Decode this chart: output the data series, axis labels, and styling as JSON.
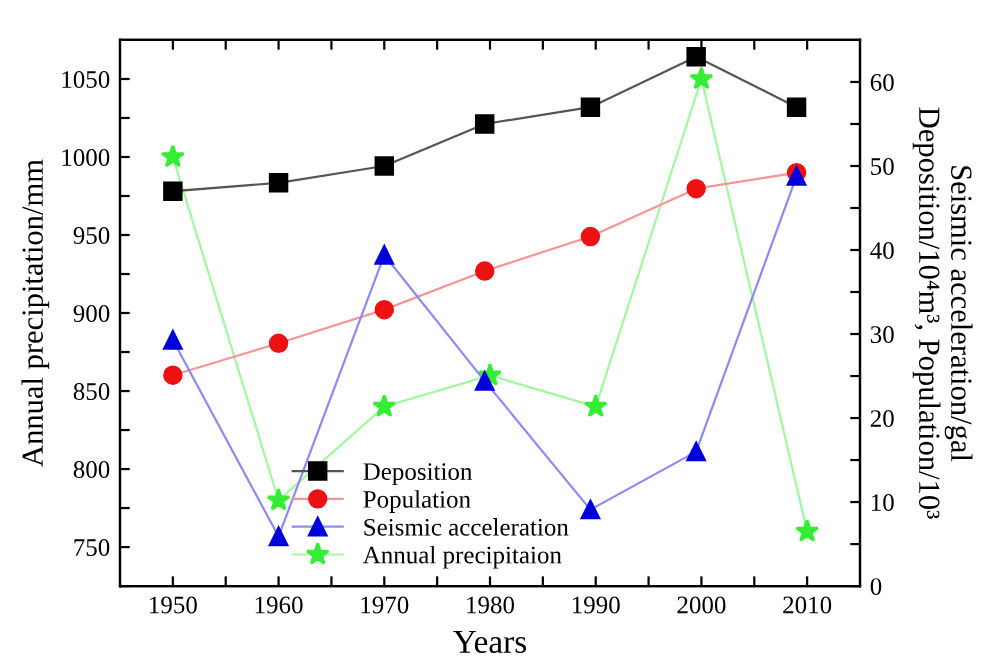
{
  "chart_data": {
    "type": "line",
    "xlabel": "Years",
    "ylabel": "Annual precipitation/mm",
    "y2label": "Seismic acceleration/gal\nDeposition/10⁴m³, Population/10³",
    "xlim": [
      1945,
      2015
    ],
    "xticks": [
      1950,
      {
        "value": 1955,
        "label": null
      },
      1960,
      {
        "value": 1965,
        "label": null
      },
      1970,
      {
        "value": 1975,
        "label": null
      },
      1980,
      {
        "value": 1985,
        "label": null
      },
      1990,
      {
        "value": 1995,
        "label": null
      },
      2000,
      {
        "value": 2005,
        "label": null
      },
      2010
    ],
    "ylim": [
      725,
      1075
    ],
    "yticks": [
      {
        "value": 725,
        "label": null
      },
      750,
      {
        "value": 775,
        "label": null
      },
      800,
      {
        "value": 825,
        "label": null
      },
      850,
      {
        "value": 875,
        "label": null
      },
      900,
      {
        "value": 925,
        "label": null
      },
      950,
      {
        "value": 975,
        "label": null
      },
      1000,
      {
        "value": 1025,
        "label": null
      },
      1050
    ],
    "y2lim": [
      0,
      65
    ],
    "y2ticks": [
      0,
      {
        "value": 5,
        "label": null
      },
      10,
      {
        "value": 15,
        "label": null
      },
      20,
      {
        "value": 25,
        "label": null
      },
      30,
      {
        "value": 35,
        "label": null
      },
      40,
      {
        "value": 45,
        "label": null
      },
      50,
      {
        "value": 55,
        "label": null
      },
      60
    ],
    "grid": false,
    "legend": "bottom",
    "series": [
      {
        "name": "Deposition",
        "color": "#000000",
        "marker": "square",
        "axis": "y2",
        "x": [
          1950,
          1960,
          1970,
          1979.5,
          1989.5,
          1999.5,
          2009
        ],
        "values": [
          47,
          48,
          50,
          55,
          57,
          63,
          57
        ]
      },
      {
        "name": "Population",
        "color": "#ee1111",
        "marker": "circle",
        "axis": "y2",
        "x": [
          1950,
          1960,
          1970,
          1979.5,
          1989.5,
          1999.5,
          2009
        ],
        "values": [
          25.1,
          28.9,
          32.9,
          37.5,
          41.6,
          47.3,
          49.2
        ]
      },
      {
        "name": "Seismic acceleration",
        "color": "#0000dd",
        "marker": "triangle",
        "axis": "y2",
        "x": [
          1950,
          1960,
          1970,
          1979.5,
          1989.5,
          1999.5,
          2009
        ],
        "values": [
          29.3,
          5.9,
          39.4,
          24.4,
          9.1,
          16.0,
          48.8
        ]
      },
      {
        "name": "Annual precipitaion",
        "color": "#33ee33",
        "marker": "star",
        "axis": "y",
        "x": [
          1950,
          1960,
          1970,
          1980,
          1990,
          2000,
          2010
        ],
        "values": [
          1000,
          780,
          840,
          860,
          840,
          1050,
          760
        ]
      }
    ]
  }
}
